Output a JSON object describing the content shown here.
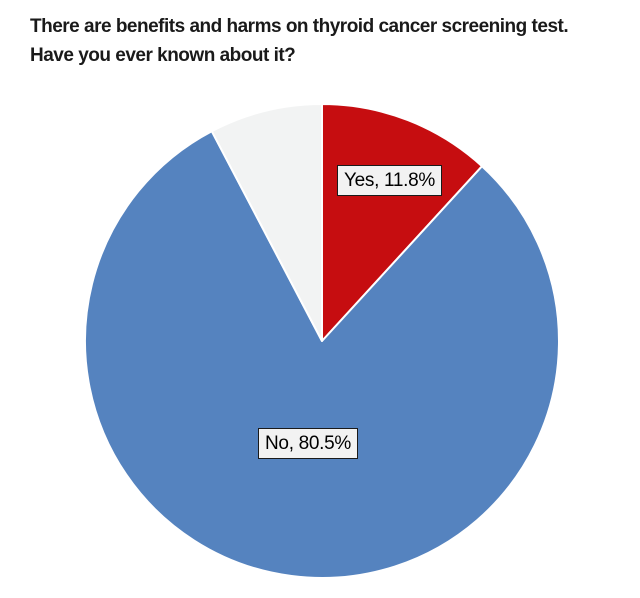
{
  "title": "There are benefits and harms on thyroid cancer screening test.\nHave you ever known about it?",
  "chart_data": {
    "type": "pie",
    "title": "There are benefits and harms on thyroid cancer screening test. Have you ever known about it?",
    "categories": [
      "Yes",
      "No",
      ""
    ],
    "values": [
      11.8,
      80.5,
      7.7
    ],
    "slices": [
      {
        "label": "Yes",
        "value": "11.8",
        "color": "#c60d10",
        "labeled": true
      },
      {
        "label": "No",
        "value": "80.5",
        "color": "#5583bf",
        "labeled": true
      },
      {
        "label": "",
        "value": "7.7",
        "color": "#f2f3f3",
        "labeled": false
      }
    ],
    "label_format": "{label}, {value}%",
    "start_angle_deg": 0,
    "direction": "clockwise",
    "slice_border_color": "#ffffff",
    "legend": "none",
    "background": "#ffffff"
  }
}
